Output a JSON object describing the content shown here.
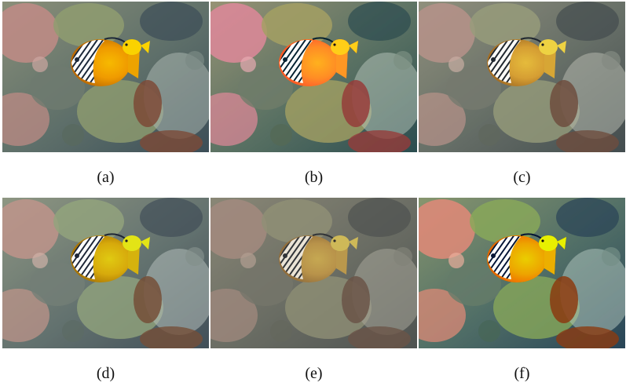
{
  "panels": [
    {
      "id": "a",
      "label": "(a)"
    },
    {
      "id": "b",
      "label": "(b)"
    },
    {
      "id": "c",
      "label": "(c)"
    },
    {
      "id": "d",
      "label": "(d)"
    },
    {
      "id": "e",
      "label": "(e)"
    },
    {
      "id": "f",
      "label": "(f)"
    }
  ],
  "image_content": {
    "subject": "butterflyfish on coral reef",
    "background_colors": [
      "#5f6f6a",
      "#8a8f7a",
      "#3e4f57"
    ],
    "fish_colors": [
      "#f2b800",
      "#ffffff",
      "#1e2a3a"
    ],
    "coral_colors": [
      "#b98b86",
      "#8f9b72",
      "#7a4b3a"
    ]
  }
}
